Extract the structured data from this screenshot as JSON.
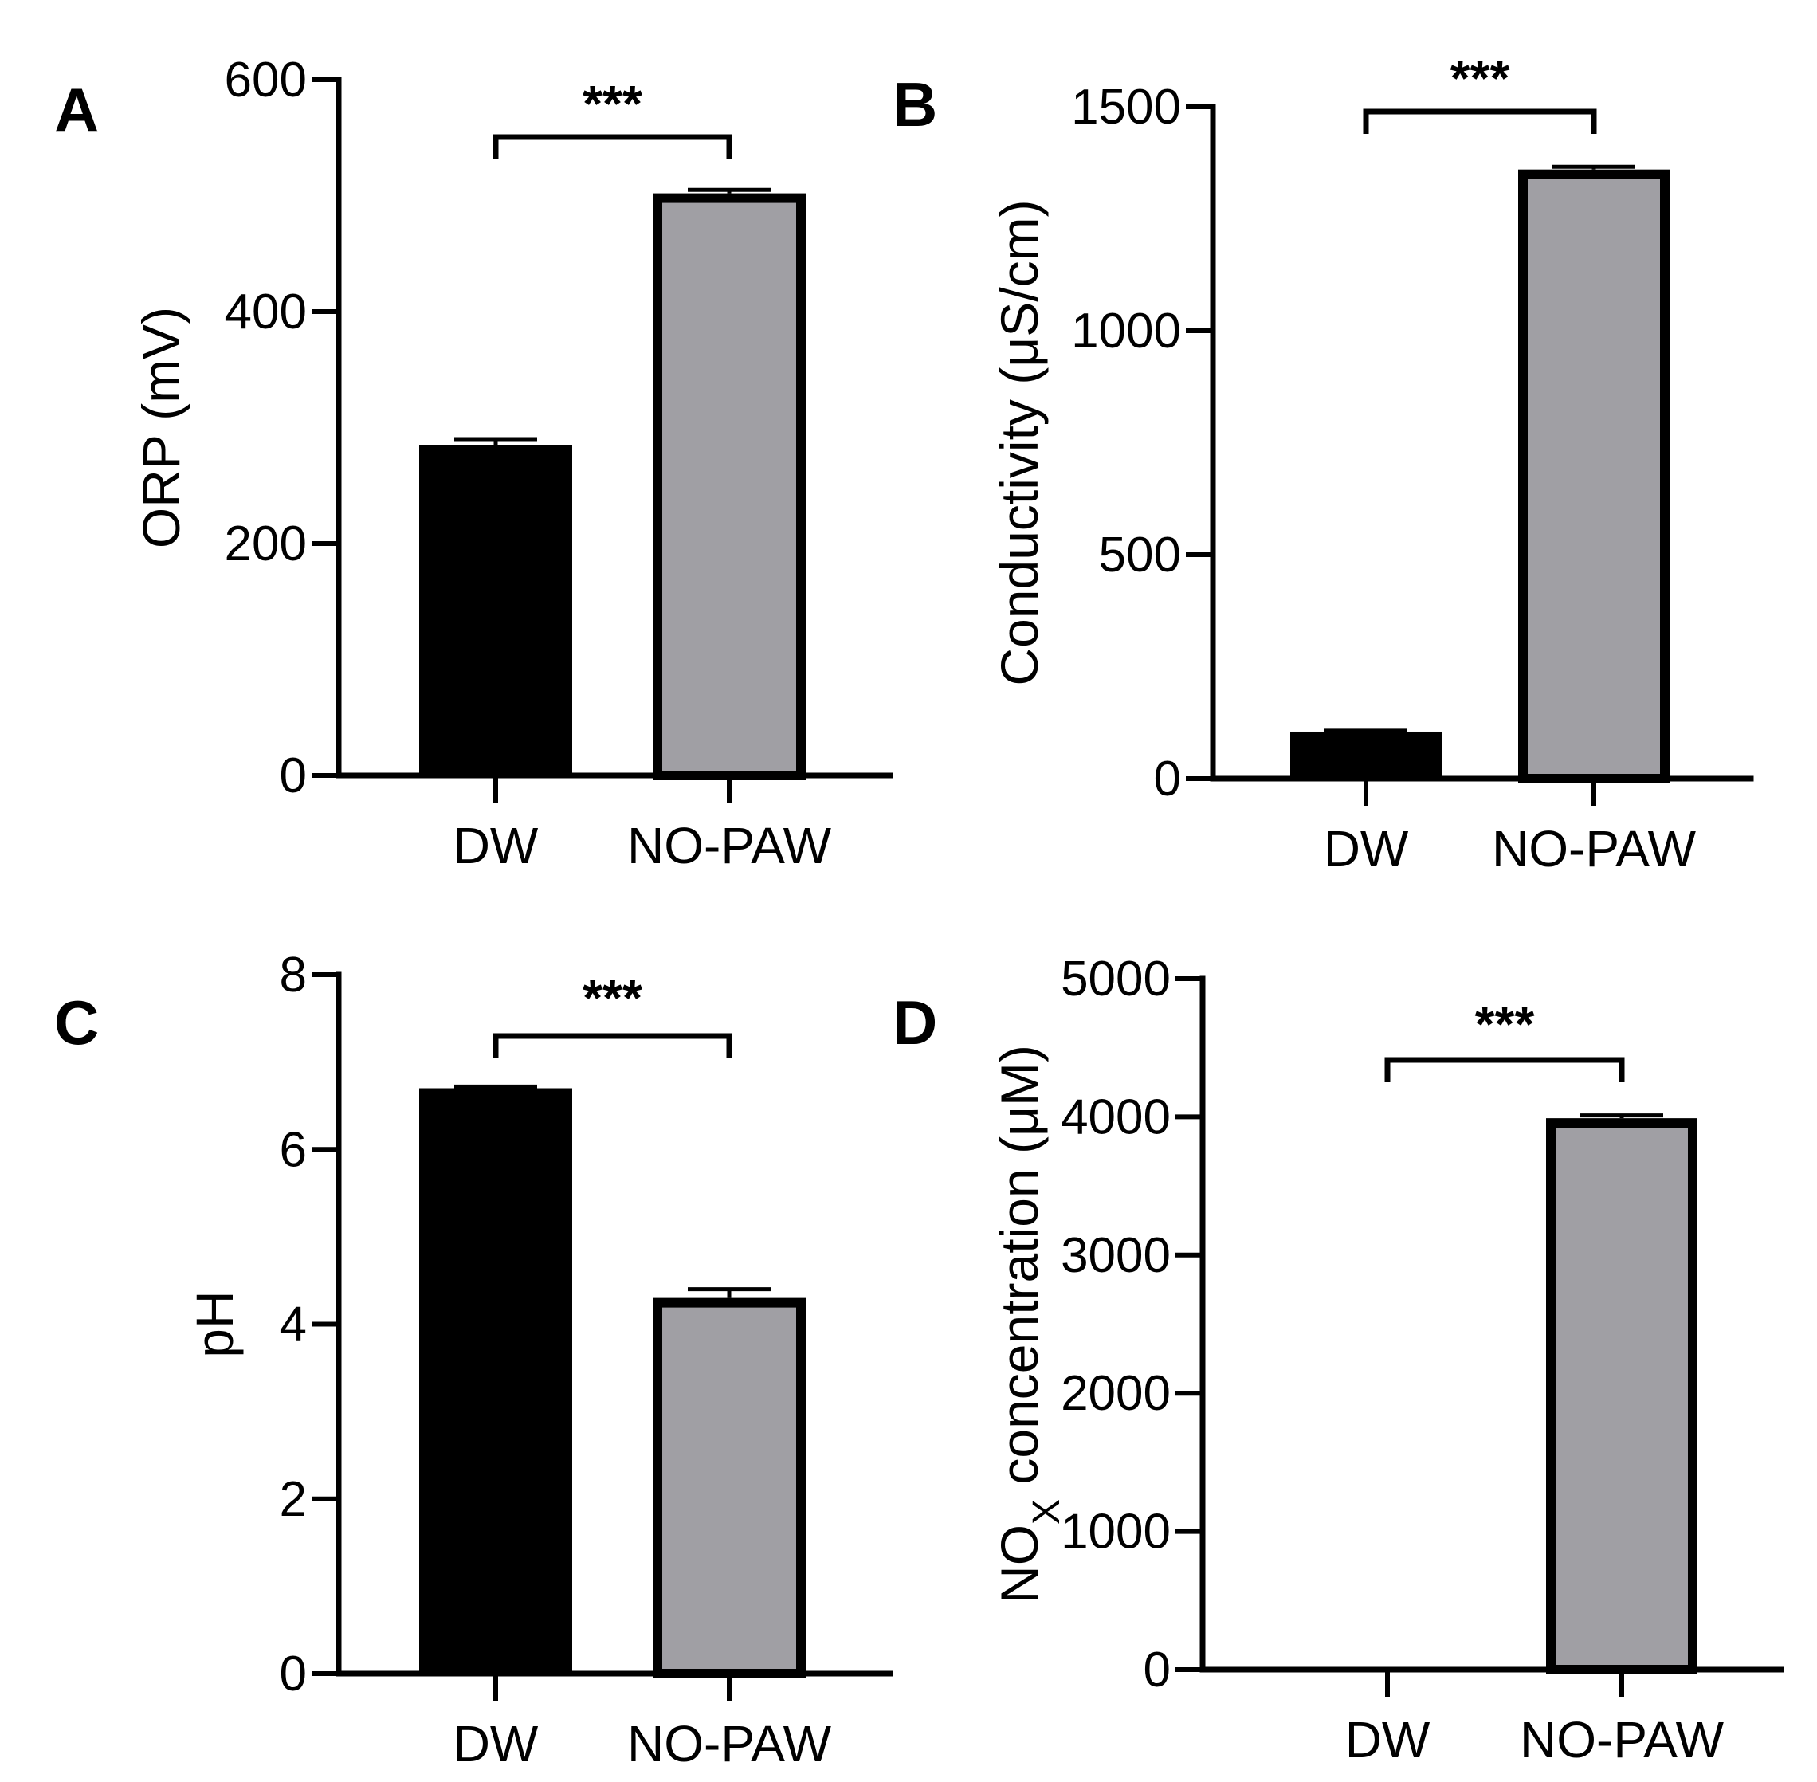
{
  "colors": {
    "dw_bar": "#000000",
    "nopaw_bar": "#a09fa4",
    "outline": "#000000"
  },
  "chart_data": [
    {
      "panel": "A",
      "type": "bar",
      "categories": [
        "DW",
        "NO-PAW"
      ],
      "values": [
        285,
        502
      ],
      "errors": [
        5,
        3
      ],
      "xlabel": "",
      "ylabel": "ORP (mV)",
      "ylim": [
        0,
        600
      ],
      "yticks": [
        0,
        200,
        400,
        600
      ],
      "ytick_labels": [
        "0",
        "200",
        "400",
        "600"
      ],
      "significance": "***"
    },
    {
      "panel": "B",
      "type": "bar",
      "categories": [
        "DW",
        "NO-PAW"
      ],
      "values": [
        105,
        1360
      ],
      "errors": [
        2,
        6
      ],
      "xlabel": "",
      "ylabel": "Conductivity (μS/cm)",
      "ylim": [
        0,
        1500
      ],
      "yticks": [
        0,
        500,
        1000,
        1500
      ],
      "ytick_labels": [
        "0",
        "500",
        "1000",
        "1500"
      ],
      "significance": "***"
    },
    {
      "panel": "C",
      "type": "bar",
      "categories": [
        "DW",
        "NO-PAW"
      ],
      "values": [
        6.7,
        4.3
      ],
      "errors": [
        0.02,
        0.1
      ],
      "xlabel": "",
      "ylabel": "pH",
      "ylim": [
        0,
        8
      ],
      "yticks": [
        0,
        2,
        4,
        6,
        8
      ],
      "ytick_labels": [
        "0",
        "2",
        "4",
        "6",
        "8"
      ],
      "significance": "***"
    },
    {
      "panel": "D",
      "type": "bar",
      "categories": [
        "DW",
        "NO-PAW"
      ],
      "values": [
        0,
        3990
      ],
      "errors": [
        0,
        20
      ],
      "xlabel": "",
      "ylabel": "NOX concentration (μM)",
      "ylabel_parts": {
        "main": "NO",
        "subscript": "X",
        "rest": " concentration (μM)"
      },
      "ylim": [
        0,
        5000
      ],
      "yticks": [
        0,
        1000,
        2000,
        3000,
        4000,
        5000
      ],
      "ytick_labels": [
        "0",
        "1000",
        "2000",
        "3000",
        "4000",
        "5000"
      ],
      "significance": "***"
    }
  ]
}
